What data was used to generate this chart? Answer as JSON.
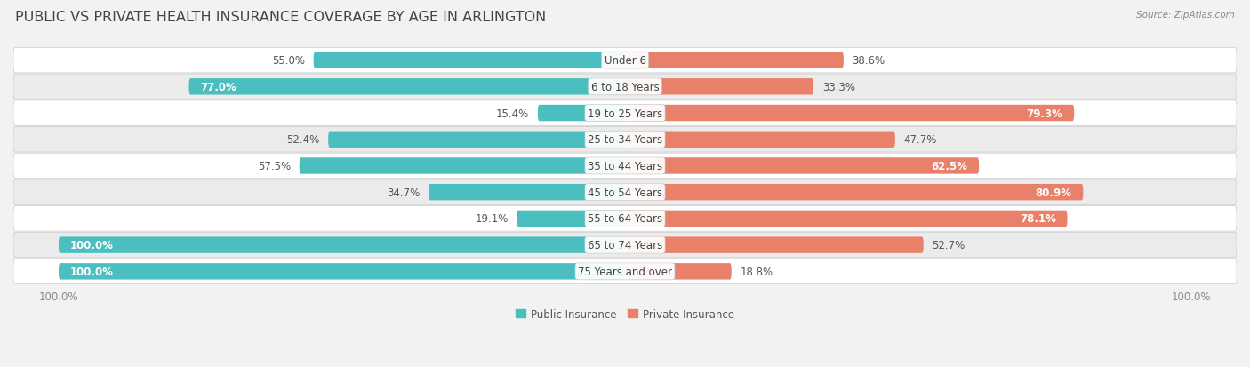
{
  "title": "PUBLIC VS PRIVATE HEALTH INSURANCE COVERAGE BY AGE IN ARLINGTON",
  "source": "Source: ZipAtlas.com",
  "categories": [
    "Under 6",
    "6 to 18 Years",
    "19 to 25 Years",
    "25 to 34 Years",
    "35 to 44 Years",
    "45 to 54 Years",
    "55 to 64 Years",
    "65 to 74 Years",
    "75 Years and over"
  ],
  "public_values": [
    55.0,
    77.0,
    15.4,
    52.4,
    57.5,
    34.7,
    19.1,
    100.0,
    100.0
  ],
  "private_values": [
    38.6,
    33.3,
    79.3,
    47.7,
    62.5,
    80.9,
    78.1,
    52.7,
    18.8
  ],
  "public_color": "#4BBFBF",
  "public_color_light": "#7ED8D8",
  "private_color": "#E8806A",
  "private_color_light": "#F0A898",
  "public_label": "Public Insurance",
  "private_label": "Private Insurance",
  "background_color": "#f2f2f2",
  "row_bg_even": "#ffffff",
  "row_bg_odd": "#ebebeb",
  "title_fontsize": 11.5,
  "source_fontsize": 7.5,
  "label_fontsize": 8.5,
  "value_fontsize": 8.5,
  "tick_fontsize": 8.5,
  "max_val": 100.0,
  "bar_height": 0.62
}
